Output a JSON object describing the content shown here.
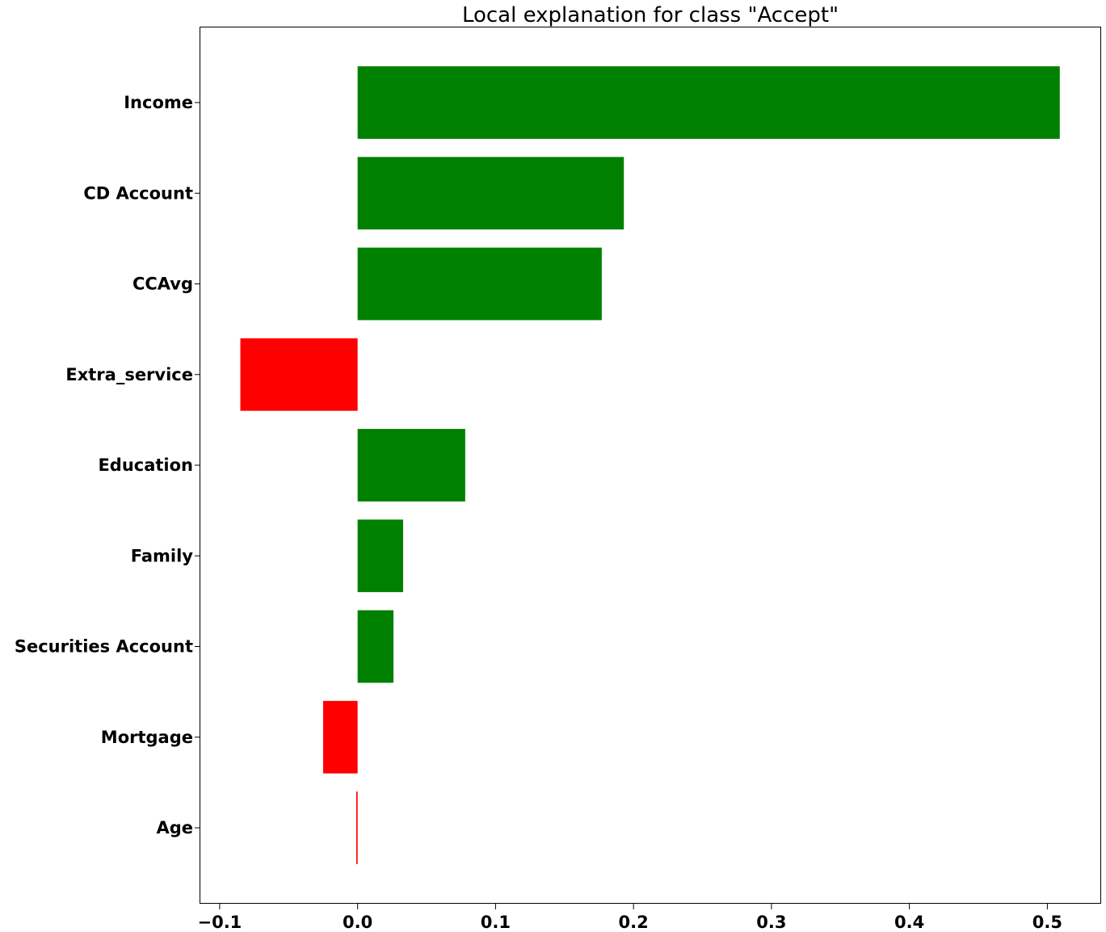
{
  "chart_data": {
    "type": "bar",
    "orientation": "horizontal",
    "title": "Local explanation for class \"Accept\"",
    "xlabel": "",
    "ylabel": "",
    "categories": [
      "Income",
      "CD Account",
      "CCAvg",
      "Extra_service",
      "Education",
      "Family",
      "Securities Account",
      "Mortgage",
      "Age"
    ],
    "values": [
      0.509,
      0.193,
      0.177,
      -0.085,
      0.078,
      0.033,
      0.026,
      -0.025,
      -0.001
    ],
    "xlim": [
      -0.114,
      0.539
    ],
    "xticks": [
      -0.1,
      0.0,
      0.1,
      0.2,
      0.3,
      0.4,
      0.5
    ],
    "xtick_labels": [
      "−0.1",
      "0.0",
      "0.1",
      "0.2",
      "0.3",
      "0.4",
      "0.5"
    ],
    "colors": {
      "positive": "#008000",
      "negative": "#ff0000"
    },
    "grid": false,
    "legend": "none"
  }
}
